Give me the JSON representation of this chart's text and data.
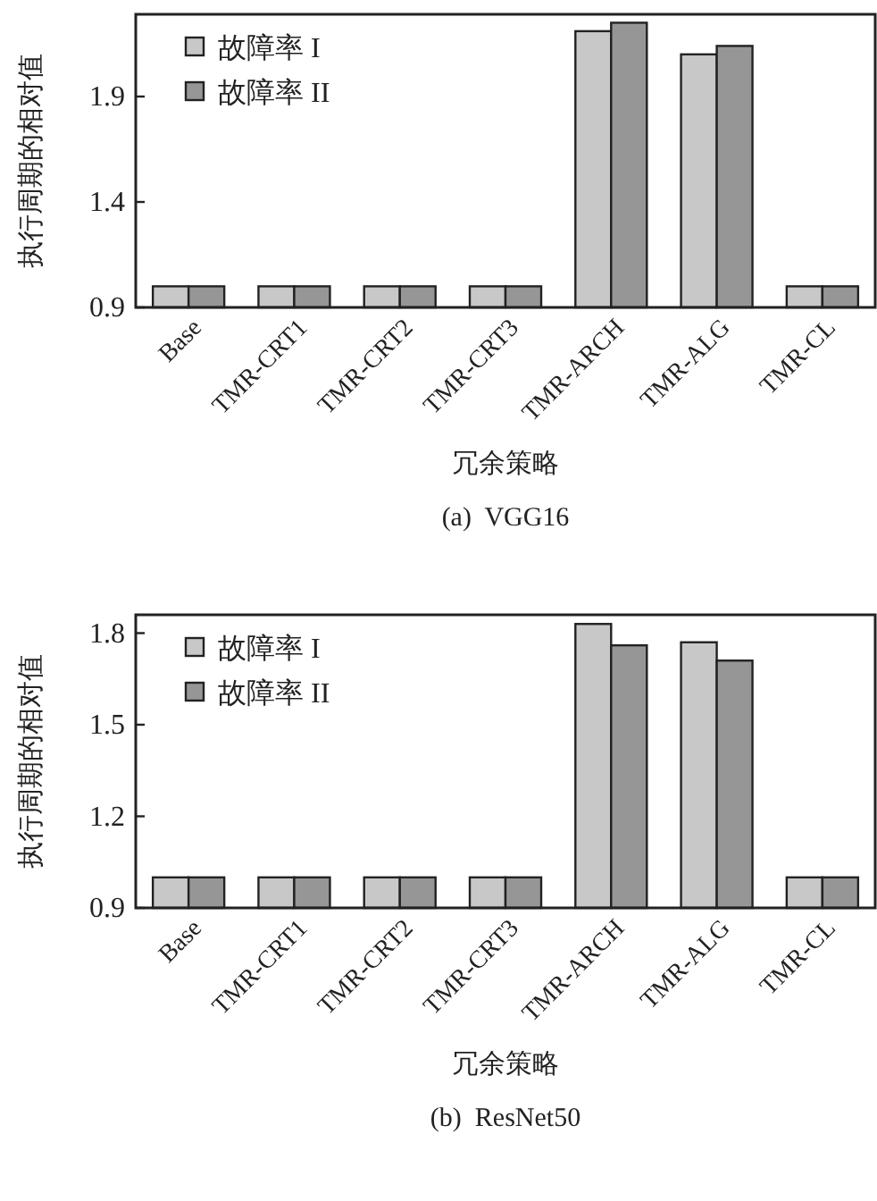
{
  "chart_data": [
    {
      "type": "bar",
      "title": "(a)  VGG16",
      "xlabel": "冗余策略",
      "ylabel": "执行周期的相对值",
      "categories": [
        "Base",
        "TMR-CRT1",
        "TMR-CRT2",
        "TMR-CRT3",
        "TMR-ARCH",
        "TMR-ALG",
        "TMR-CL"
      ],
      "series": [
        {
          "name": "故障率 I",
          "color": "#c8c8c8",
          "values": [
            1.0,
            1.0,
            1.0,
            1.0,
            2.21,
            2.1,
            1.0
          ]
        },
        {
          "name": "故障率 II",
          "color": "#969696",
          "values": [
            1.0,
            1.0,
            1.0,
            1.0,
            2.25,
            2.14,
            1.0
          ]
        }
      ],
      "ylim": [
        0.9,
        2.29
      ],
      "yticks": [
        0.9,
        1.4,
        1.9
      ],
      "grid": false,
      "legend": "top left"
    },
    {
      "type": "bar",
      "title": "(b)  ResNet50",
      "xlabel": "冗余策略",
      "ylabel": "执行周期的相对值",
      "categories": [
        "Base",
        "TMR-CRT1",
        "TMR-CRT2",
        "TMR-CRT3",
        "TMR-ARCH",
        "TMR-ALG",
        "TMR-CL"
      ],
      "series": [
        {
          "name": "故障率 I",
          "color": "#c8c8c8",
          "values": [
            1.0,
            1.0,
            1.0,
            1.0,
            1.83,
            1.77,
            1.0
          ]
        },
        {
          "name": "故障率 II",
          "color": "#969696",
          "values": [
            1.0,
            1.0,
            1.0,
            1.0,
            1.76,
            1.71,
            1.0
          ]
        }
      ],
      "ylim": [
        0.9,
        1.86
      ],
      "yticks": [
        0.9,
        1.2,
        1.5,
        1.8
      ],
      "grid": false,
      "legend": "top left"
    }
  ]
}
